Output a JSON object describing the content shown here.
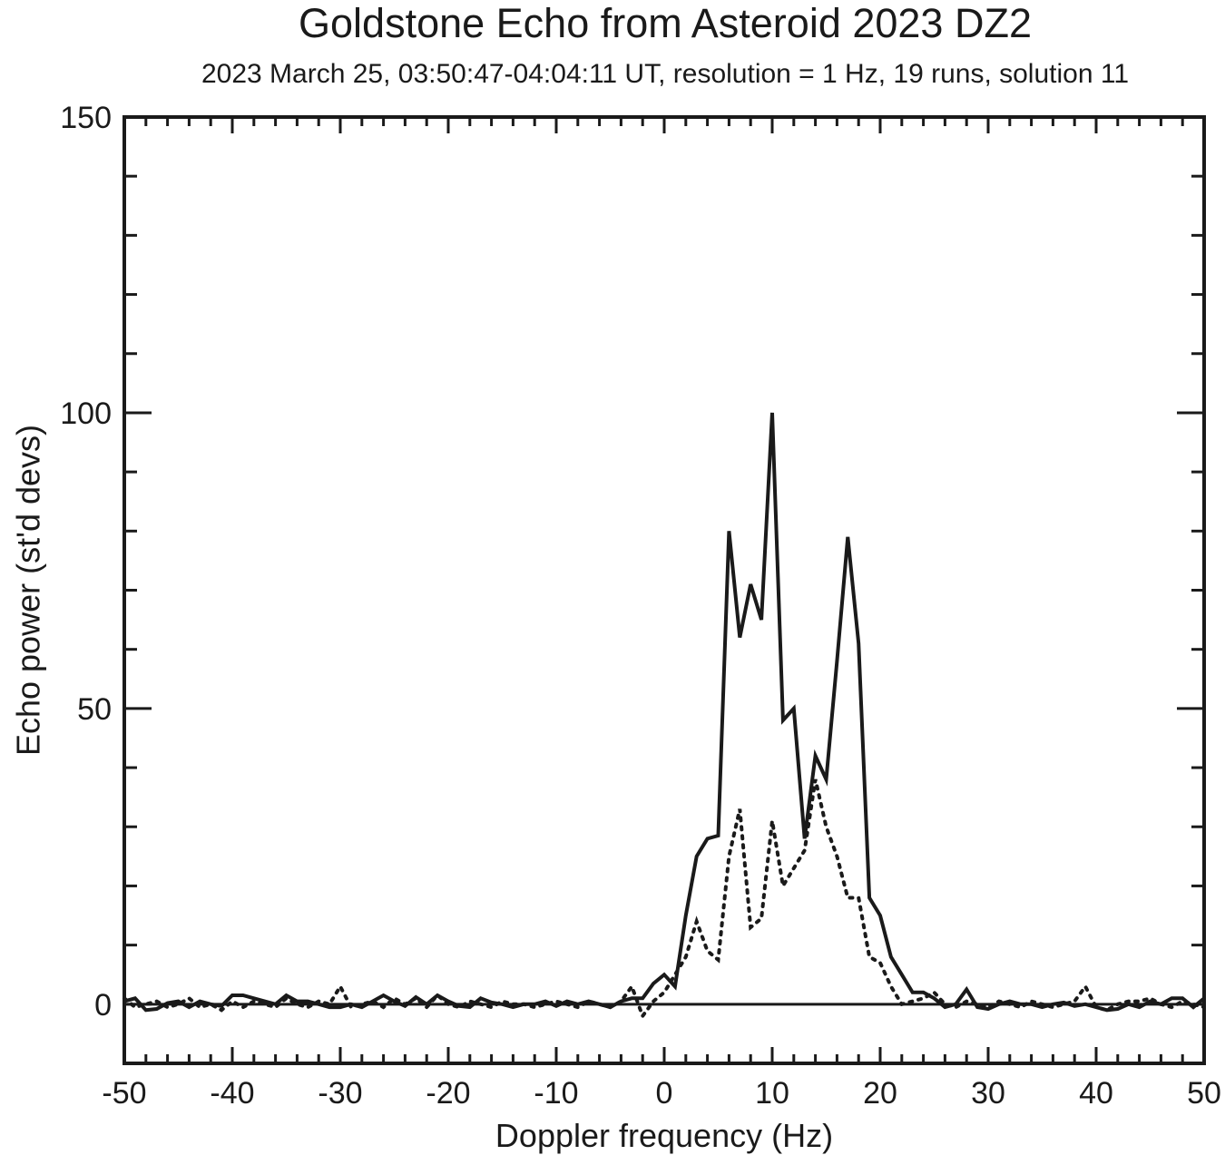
{
  "chart_data": {
    "type": "line",
    "title": "Goldstone Echo from Asteroid 2023 DZ2",
    "subtitle": "2023 March 25, 03:50:47-04:04:11 UT, resolution = 1 Hz, 19 runs, solution 11",
    "xlabel": "Doppler frequency (Hz)",
    "ylabel": "Echo power (st'd devs)",
    "xlim": [
      -50,
      50
    ],
    "ylim": [
      -10,
      150
    ],
    "x_ticks": [
      -50,
      -40,
      -30,
      -20,
      -10,
      0,
      10,
      20,
      30,
      40,
      50
    ],
    "y_ticks": [
      0,
      50,
      100,
      150
    ],
    "grid": false,
    "legend": "none",
    "series": [
      {
        "style": "solid",
        "x": [
          -50,
          -49,
          -48,
          -47,
          -46,
          -45,
          -44,
          -43,
          -42,
          -41,
          -40,
          -39,
          -38,
          -37,
          -36,
          -35,
          -34,
          -33,
          -32,
          -31,
          -30,
          -29,
          -28,
          -27,
          -26,
          -25,
          -24,
          -23,
          -22,
          -21,
          -20,
          -19,
          -18,
          -17,
          -16,
          -15,
          -14,
          -13,
          -12,
          -11,
          -10,
          -9,
          -8,
          -7,
          -6,
          -5,
          -4,
          -3,
          -2,
          -1,
          0,
          1,
          2,
          3,
          4,
          5,
          6,
          7,
          8,
          9,
          10,
          11,
          12,
          13,
          14,
          15,
          16,
          17,
          18,
          19,
          20,
          21,
          22,
          23,
          24,
          25,
          26,
          27,
          28,
          29,
          30,
          31,
          32,
          33,
          34,
          35,
          36,
          37,
          38,
          39,
          40,
          41,
          42,
          43,
          44,
          45,
          46,
          47,
          48,
          49,
          50
        ],
        "y": [
          0.5,
          1.0,
          -1.0,
          -0.8,
          0.2,
          0.5,
          -0.5,
          0.5,
          0.0,
          -0.3,
          1.5,
          1.5,
          1.0,
          0.5,
          0.0,
          1.5,
          0.5,
          0.5,
          0.0,
          -0.5,
          -0.5,
          0.0,
          -0.5,
          0.5,
          1.5,
          0.5,
          -0.3,
          1.2,
          0.0,
          1.5,
          0.5,
          -0.3,
          -0.5,
          1.0,
          0.3,
          0.0,
          -0.5,
          0.0,
          0.0,
          0.5,
          -0.3,
          0.5,
          0.0,
          0.5,
          0.0,
          -0.5,
          0.5,
          1.0,
          1.0,
          3.5,
          5.0,
          3.0,
          15.0,
          25.0,
          28.0,
          28.5,
          80.0,
          62.0,
          71.0,
          65.0,
          100.0,
          48.0,
          50.0,
          28.0,
          42.0,
          38.0,
          58.0,
          79.0,
          61.0,
          18.0,
          15.0,
          8.0,
          5.0,
          2.0,
          2.0,
          1.0,
          -0.5,
          0.0,
          2.5,
          -0.5,
          -0.8,
          0.0,
          0.5,
          0.0,
          0.0,
          -0.5,
          0.0,
          0.3,
          -0.3,
          0.0,
          -0.5,
          -1.0,
          -0.8,
          0.0,
          -0.5,
          0.5,
          0.0,
          1.0,
          1.0,
          -0.5,
          1.0
        ]
      },
      {
        "style": "dotted",
        "x": [
          -50,
          -49,
          -48,
          -47,
          -46,
          -45,
          -44,
          -43,
          -42,
          -41,
          -40,
          -39,
          -38,
          -37,
          -36,
          -35,
          -34,
          -33,
          -32,
          -31,
          -30,
          -29,
          -28,
          -27,
          -26,
          -25,
          -24,
          -23,
          -22,
          -21,
          -20,
          -19,
          -18,
          -17,
          -16,
          -15,
          -14,
          -13,
          -12,
          -11,
          -10,
          -9,
          -8,
          -7,
          -6,
          -5,
          -4,
          -3,
          -2,
          -1,
          0,
          1,
          2,
          3,
          4,
          5,
          6,
          7,
          8,
          9,
          10,
          11,
          12,
          13,
          14,
          15,
          16,
          17,
          18,
          19,
          20,
          21,
          22,
          23,
          24,
          25,
          26,
          27,
          28,
          29,
          30,
          31,
          32,
          33,
          34,
          35,
          36,
          37,
          38,
          39,
          40,
          41,
          42,
          43,
          44,
          45,
          46,
          47,
          48,
          49,
          50
        ],
        "y": [
          1.0,
          -0.5,
          0.0,
          0.5,
          -0.5,
          0.0,
          1.0,
          -0.5,
          0.0,
          -1.0,
          0.5,
          -0.5,
          0.5,
          0.0,
          -0.5,
          1.0,
          0.0,
          -0.5,
          0.5,
          0.0,
          3.0,
          -0.5,
          0.0,
          0.5,
          -0.5,
          1.0,
          0.0,
          1.0,
          -0.5,
          1.5,
          0.0,
          -0.5,
          0.5,
          0.0,
          -0.5,
          0.5,
          0.0,
          0.0,
          -0.5,
          0.0,
          0.5,
          0.0,
          -0.5,
          0.5,
          0.0,
          -0.5,
          0.5,
          3.0,
          -2.0,
          0.5,
          2.0,
          5.0,
          8.0,
          14.0,
          9.0,
          7.5,
          25.0,
          33.0,
          13.0,
          14.5,
          31.0,
          20.0,
          23.0,
          26.0,
          38.0,
          30.0,
          25.0,
          18.0,
          18.0,
          8.0,
          7.0,
          3.0,
          0.0,
          0.5,
          1.0,
          2.0,
          0.0,
          -0.5,
          0.5,
          0.0,
          -0.5,
          0.5,
          0.0,
          -0.5,
          0.5,
          0.0,
          -0.5,
          0.0,
          0.5,
          3.0,
          -0.5,
          -1.0,
          0.0,
          0.5,
          0.5,
          1.0,
          0.0,
          -0.5,
          0.5,
          0.0,
          -0.5
        ]
      }
    ]
  }
}
